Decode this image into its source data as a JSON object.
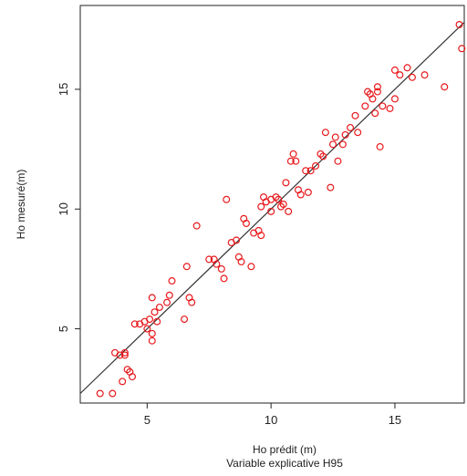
{
  "chart_data": {
    "type": "scatter",
    "title": "",
    "xlabel": "Ho prédit (m)",
    "xlabel_line2": "Variable explicative H95",
    "ylabel": "Ho mesuré(m)",
    "xlim": [
      2.3,
      17.8
    ],
    "ylim": [
      1.9,
      18.5
    ],
    "x_ticks": [
      5,
      10,
      15
    ],
    "y_ticks": [
      5,
      10,
      15
    ],
    "grid": false,
    "legend": "none",
    "colors": {
      "points": "#e8191c",
      "line": "#333333",
      "axes": "#222222",
      "background": "#ffffff"
    },
    "fit_line": {
      "slope": 1.0,
      "intercept": 0.0
    },
    "points": [
      [
        3.1,
        2.3
      ],
      [
        3.6,
        2.3
      ],
      [
        3.7,
        4.0
      ],
      [
        3.9,
        3.9
      ],
      [
        4.0,
        2.8
      ],
      [
        4.1,
        4.0
      ],
      [
        4.1,
        3.9
      ],
      [
        4.2,
        3.3
      ],
      [
        4.3,
        3.2
      ],
      [
        4.4,
        3.0
      ],
      [
        4.5,
        5.2
      ],
      [
        4.7,
        5.2
      ],
      [
        4.9,
        5.3
      ],
      [
        5.0,
        5.0
      ],
      [
        5.1,
        5.4
      ],
      [
        5.2,
        4.8
      ],
      [
        5.2,
        4.5
      ],
      [
        5.3,
        5.7
      ],
      [
        5.2,
        6.3
      ],
      [
        5.4,
        5.3
      ],
      [
        5.5,
        5.9
      ],
      [
        5.8,
        6.1
      ],
      [
        5.9,
        6.4
      ],
      [
        6.0,
        7.0
      ],
      [
        6.5,
        5.4
      ],
      [
        6.6,
        7.6
      ],
      [
        6.7,
        6.3
      ],
      [
        6.8,
        6.1
      ],
      [
        7.0,
        9.3
      ],
      [
        7.5,
        7.9
      ],
      [
        7.7,
        7.9
      ],
      [
        7.8,
        7.7
      ],
      [
        8.0,
        7.5
      ],
      [
        8.1,
        7.1
      ],
      [
        8.2,
        10.4
      ],
      [
        8.4,
        8.6
      ],
      [
        8.6,
        8.7
      ],
      [
        8.7,
        8.0
      ],
      [
        8.8,
        7.8
      ],
      [
        8.9,
        9.6
      ],
      [
        9.0,
        9.4
      ],
      [
        9.2,
        7.6
      ],
      [
        9.3,
        9.0
      ],
      [
        9.5,
        9.1
      ],
      [
        9.6,
        10.1
      ],
      [
        9.6,
        8.9
      ],
      [
        9.7,
        10.5
      ],
      [
        9.8,
        10.3
      ],
      [
        10.0,
        10.4
      ],
      [
        10.0,
        9.9
      ],
      [
        10.2,
        10.5
      ],
      [
        10.3,
        10.4
      ],
      [
        10.4,
        10.1
      ],
      [
        10.5,
        10.2
      ],
      [
        10.6,
        11.1
      ],
      [
        10.7,
        9.9
      ],
      [
        10.8,
        12.0
      ],
      [
        10.9,
        12.3
      ],
      [
        11.0,
        12.0
      ],
      [
        11.1,
        10.8
      ],
      [
        11.2,
        10.6
      ],
      [
        11.4,
        11.6
      ],
      [
        11.5,
        10.7
      ],
      [
        11.6,
        11.6
      ],
      [
        11.8,
        11.8
      ],
      [
        12.0,
        12.3
      ],
      [
        12.1,
        12.2
      ],
      [
        12.2,
        13.2
      ],
      [
        12.4,
        10.9
      ],
      [
        12.5,
        12.7
      ],
      [
        12.6,
        13.0
      ],
      [
        12.7,
        12.0
      ],
      [
        12.9,
        12.7
      ],
      [
        13.0,
        13.1
      ],
      [
        13.2,
        13.4
      ],
      [
        13.4,
        13.9
      ],
      [
        13.5,
        13.2
      ],
      [
        13.8,
        14.3
      ],
      [
        13.9,
        14.9
      ],
      [
        14.0,
        14.8
      ],
      [
        14.1,
        14.6
      ],
      [
        14.2,
        14.0
      ],
      [
        14.3,
        14.9
      ],
      [
        14.3,
        15.1
      ],
      [
        14.4,
        12.6
      ],
      [
        14.5,
        14.3
      ],
      [
        14.8,
        14.2
      ],
      [
        15.0,
        14.6
      ],
      [
        15.0,
        15.8
      ],
      [
        15.2,
        15.6
      ],
      [
        15.5,
        15.9
      ],
      [
        15.7,
        15.5
      ],
      [
        16.2,
        15.6
      ],
      [
        17.0,
        15.1
      ],
      [
        17.6,
        17.7
      ],
      [
        17.7,
        16.7
      ]
    ]
  }
}
